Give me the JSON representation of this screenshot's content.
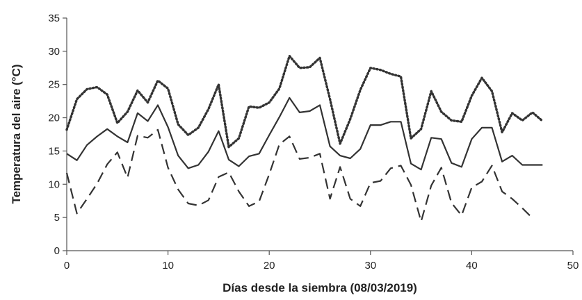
{
  "chart_data": {
    "type": "line",
    "title": "",
    "xlabel": "Días desde la siembra (08/03/2019)",
    "ylabel": "Temperatura del aire (°C)",
    "xlim": [
      0,
      50
    ],
    "ylim": [
      0,
      35
    ],
    "x_ticks": [
      0,
      10,
      20,
      30,
      40,
      50
    ],
    "y_ticks": [
      0,
      5,
      10,
      15,
      20,
      25,
      30,
      35
    ],
    "grid": false,
    "legend": "none",
    "series": [
      {
        "style": "dotted",
        "color": "#333333",
        "x": [
          0,
          1,
          2,
          3,
          4,
          5,
          6,
          7,
          8,
          9,
          10,
          11,
          12,
          13,
          14,
          15,
          16,
          17,
          18,
          19,
          20,
          21,
          22,
          23,
          24,
          25,
          26,
          27,
          28,
          29,
          30,
          31,
          32,
          33,
          34,
          35,
          36,
          37,
          38,
          39,
          40,
          41,
          42,
          43,
          44,
          45,
          46,
          47
        ],
        "values": [
          18.2,
          22.8,
          24.3,
          24.6,
          23.5,
          19.2,
          20.9,
          24.1,
          22.3,
          25.6,
          24.4,
          19.0,
          17.4,
          18.5,
          21.3,
          25.0,
          15.6,
          16.9,
          21.7,
          21.5,
          22.3,
          24.4,
          29.3,
          27.5,
          27.6,
          29.0,
          22.8,
          16.1,
          19.8,
          24.2,
          27.5,
          27.2,
          26.6,
          26.2,
          16.9,
          18.3,
          24.0,
          20.9,
          19.6,
          19.4,
          23.3,
          26.0,
          24.0,
          17.8,
          20.7,
          19.6,
          20.8,
          19.5
        ]
      },
      {
        "style": "solid",
        "color": "#333333",
        "x": [
          0,
          1,
          2,
          3,
          4,
          5,
          6,
          7,
          8,
          9,
          10,
          11,
          12,
          13,
          14,
          15,
          16,
          17,
          18,
          19,
          20,
          21,
          22,
          23,
          24,
          25,
          26,
          27,
          28,
          29,
          30,
          31,
          32,
          33,
          34,
          35,
          36,
          37,
          38,
          39,
          40,
          41,
          42,
          43,
          44,
          45,
          46,
          47
        ],
        "values": [
          14.6,
          13.6,
          15.9,
          17.2,
          18.3,
          17.2,
          16.3,
          20.7,
          19.5,
          21.9,
          18.6,
          14.3,
          12.4,
          12.9,
          14.9,
          18.0,
          13.7,
          12.7,
          14.2,
          14.6,
          17.4,
          20.1,
          23.0,
          20.8,
          21.0,
          21.9,
          15.7,
          14.3,
          13.9,
          15.3,
          18.9,
          18.9,
          19.4,
          19.4,
          13.1,
          12.2,
          17.0,
          16.8,
          13.2,
          12.6,
          16.8,
          18.5,
          18.5,
          13.4,
          14.3,
          12.9,
          12.9,
          12.9
        ]
      },
      {
        "style": "dashed",
        "color": "#333333",
        "x": [
          0,
          1,
          2,
          3,
          4,
          5,
          6,
          7,
          8,
          9,
          10,
          11,
          12,
          13,
          14,
          15,
          16,
          17,
          18,
          19,
          20,
          21,
          22,
          23,
          24,
          25,
          26,
          27,
          28,
          29,
          30,
          31,
          32,
          33,
          34,
          35,
          36,
          37,
          38,
          39,
          40,
          41,
          42,
          43,
          44,
          45,
          46
        ],
        "values": [
          11.7,
          5.6,
          7.8,
          10.1,
          13.0,
          14.8,
          11.0,
          17.3,
          17.0,
          18.2,
          12.5,
          9.2,
          7.1,
          6.8,
          7.6,
          11.1,
          11.8,
          8.9,
          6.7,
          7.4,
          11.5,
          16.0,
          17.2,
          13.8,
          14.0,
          14.6,
          7.8,
          12.6,
          7.8,
          6.7,
          10.2,
          10.5,
          12.4,
          12.8,
          9.9,
          4.4,
          9.8,
          12.5,
          7.2,
          5.3,
          9.5,
          10.4,
          12.8,
          8.9,
          7.8,
          6.4,
          4.9
        ]
      }
    ]
  }
}
